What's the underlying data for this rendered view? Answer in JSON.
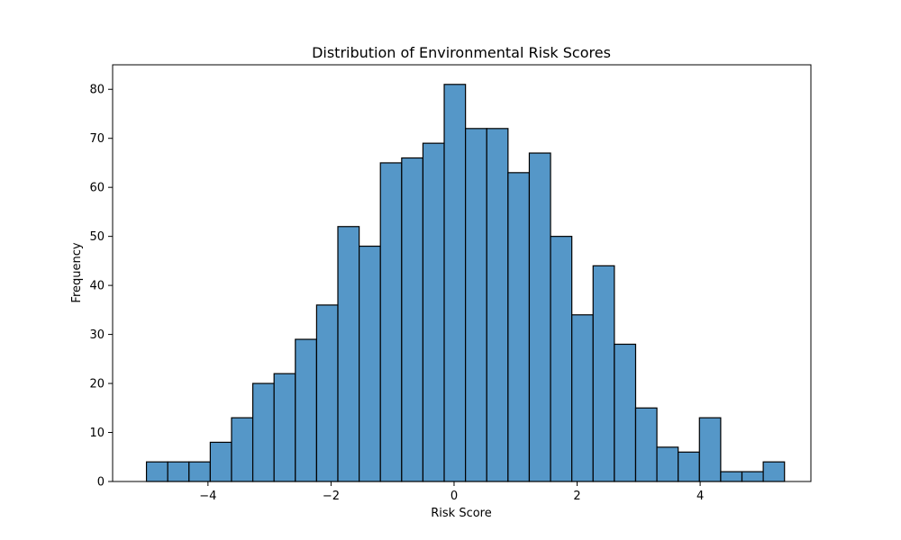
{
  "chart_data": {
    "type": "bar",
    "subtype": "histogram",
    "title": "Distribution of Environmental Risk Scores",
    "xlabel": "Risk Score",
    "ylabel": "Frequency",
    "xlim": [
      -5.55,
      5.8
    ],
    "ylim": [
      0,
      85
    ],
    "grid": false,
    "bar_color": "#5597c8",
    "edge_color": "#000000",
    "x_ticks": [
      -4,
      -2,
      0,
      2,
      4
    ],
    "x_tick_labels": [
      "−4",
      "−2",
      "0",
      "2",
      "4"
    ],
    "y_ticks": [
      0,
      10,
      20,
      30,
      40,
      50,
      60,
      70,
      80
    ],
    "y_tick_labels": [
      "0",
      "10",
      "20",
      "30",
      "40",
      "50",
      "60",
      "70",
      "80"
    ],
    "bin_start": -5.0,
    "bin_width": 0.3457,
    "counts": [
      4,
      4,
      4,
      8,
      13,
      20,
      22,
      29,
      36,
      52,
      48,
      65,
      66,
      69,
      81,
      72,
      72,
      63,
      67,
      50,
      34,
      44,
      28,
      15,
      7,
      6,
      13,
      2,
      2,
      4
    ]
  }
}
